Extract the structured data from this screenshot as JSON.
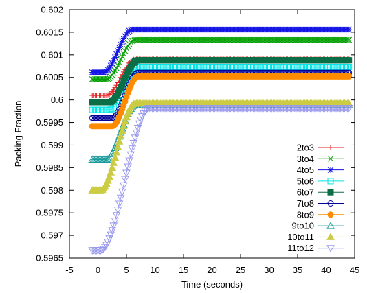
{
  "chart_data": {
    "type": "line",
    "title": "",
    "xlabel": "Time (seconds)",
    "ylabel": "Packing Fraction",
    "xlim": [
      -5,
      45
    ],
    "ylim": [
      0.5965,
      0.602
    ],
    "xticks": [
      "-5",
      "0",
      "5",
      "10",
      "15",
      "20",
      "25",
      "30",
      "35",
      "40",
      "45"
    ],
    "yticks": [
      "0.5965",
      "0.597",
      "0.5975",
      "0.598",
      "0.5985",
      "0.599",
      "0.5995",
      "0.6",
      "0.6005",
      "0.601",
      "0.6015",
      "0.602"
    ],
    "legend_position": "bottom-right",
    "grid": false,
    "series": [
      {
        "name": "2to3",
        "color": "#e41a1c",
        "marker": "plus",
        "start_x": -1,
        "initial": 0.6001,
        "rise_start": 1.5,
        "rise_end": 6.5,
        "final": 0.6009
      },
      {
        "name": "3to4",
        "color": "#009e00",
        "marker": "cross",
        "start_x": -1,
        "initial": 0.60046,
        "rise_start": 1.5,
        "rise_end": 6.5,
        "final": 0.60133
      },
      {
        "name": "4to5",
        "color": "#1414e6",
        "marker": "star",
        "start_x": -1,
        "initial": 0.60061,
        "rise_start": 1.0,
        "rise_end": 6.0,
        "final": 0.60156
      },
      {
        "name": "5to6",
        "color": "#00e5e5",
        "marker": "square-open",
        "start_x": -1,
        "initial": 0.59978,
        "rise_start": 2.0,
        "rise_end": 7.0,
        "final": 0.60073
      },
      {
        "name": "6to7",
        "color": "#0a6e46",
        "marker": "square-filled",
        "start_x": -1,
        "initial": 0.59995,
        "rise_start": 2.0,
        "rise_end": 7.0,
        "final": 0.60088
      },
      {
        "name": "7to8",
        "color": "#000099",
        "marker": "circle-open",
        "start_x": -1,
        "initial": 0.5996,
        "rise_start": 2.5,
        "rise_end": 7.0,
        "final": 0.6006
      },
      {
        "name": "8to9",
        "color": "#ff8c00",
        "marker": "circle-filled",
        "start_x": -1,
        "initial": 0.59942,
        "rise_start": 2.5,
        "rise_end": 7.0,
        "final": 0.60052
      },
      {
        "name": "9to10",
        "color": "#1a9b9b",
        "marker": "triangle-open",
        "start_x": -1,
        "initial": 0.59868,
        "rise_start": 1.5,
        "rise_end": 6.5,
        "final": 0.59988
      },
      {
        "name": "10to11",
        "color": "#cccc44",
        "marker": "triangle-filled",
        "start_x": -1,
        "initial": 0.598,
        "rise_start": 0.5,
        "rise_end": 6.5,
        "final": 0.59992
      },
      {
        "name": "11to12",
        "color": "#9999ee",
        "marker": "triangle-down-open",
        "start_x": -1,
        "initial": 0.59667,
        "rise_start": 0.5,
        "rise_end": 9.0,
        "final": 0.59982
      }
    ]
  }
}
